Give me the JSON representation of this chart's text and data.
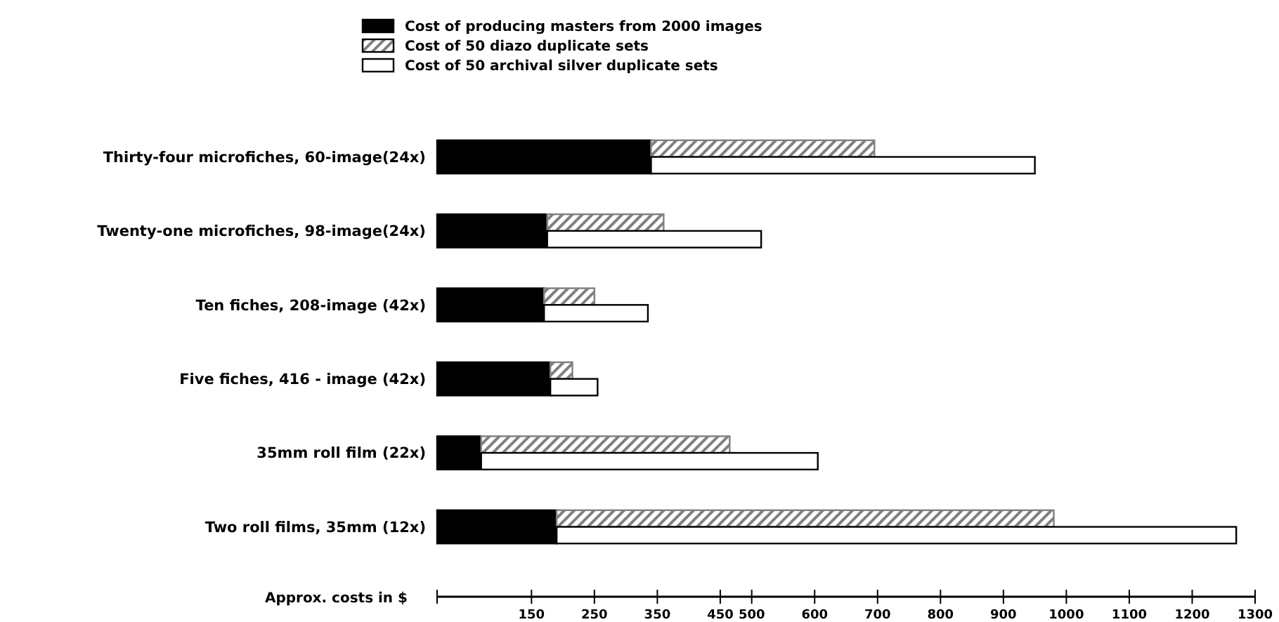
{
  "chart_data": {
    "type": "bar",
    "orientation": "horizontal",
    "xlabel": "Approx. costs in $",
    "categories": [
      "Thirty-four microfiches, 60-image(24x)",
      "Twenty-one microfiches, 98-image(24x)",
      "Ten fiches, 208-image (42x)",
      "Five fiches, 416 - image (42x)",
      "35mm roll film (22x)",
      "Two roll films, 35mm (12x)"
    ],
    "series": [
      {
        "name": "Cost of producing masters from 2000 images",
        "color": "#000000",
        "values": [
          340,
          175,
          170,
          180,
          70,
          190
        ]
      },
      {
        "name": "Cost of 50 diazo duplicate sets",
        "color": "#808080",
        "base": [
          340,
          175,
          170,
          180,
          70,
          190
        ],
        "values": [
          355,
          185,
          80,
          35,
          395,
          790
        ]
      },
      {
        "name": "Cost of 50 archival silver duplicate sets",
        "color": "#ffffff",
        "base": [
          340,
          175,
          170,
          180,
          70,
          190
        ],
        "values": [
          610,
          340,
          165,
          75,
          535,
          1080
        ]
      }
    ],
    "xlim": [
      0,
      1300
    ],
    "xticks": [
      150,
      250,
      350,
      450,
      500,
      600,
      700,
      800,
      900,
      1000,
      1100,
      1200,
      1300
    ],
    "legend": "top",
    "grid": false
  }
}
